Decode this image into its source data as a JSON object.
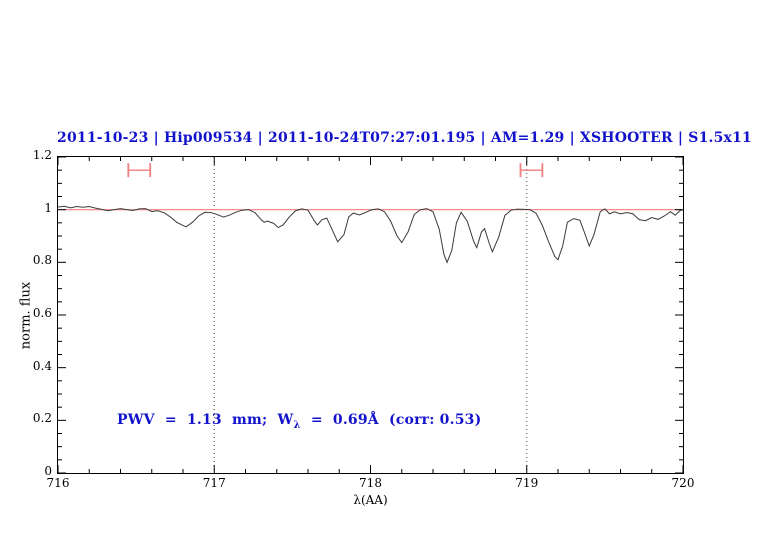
{
  "figure": {
    "title": "2011-10-23 | Hip009534 | 2011-10-24T07:27:01.195 | AM=1.29 | XSHOOTER | S1.5x11",
    "annotation_part1": "PWV  =  1.13  mm;  W",
    "annotation_sub": "λ",
    "annotation_part2": "  =  0.69Å  (corr: 0.53)"
  },
  "colors": {
    "title_blue": "#1212cc",
    "annotation_blue": "#1212cc",
    "reference_red": "#f08080",
    "marker_red": "#f08080",
    "spectrum": "#3a3a3a",
    "dotted_line": "#444444",
    "axis": "#000000"
  },
  "chart_data": {
    "type": "line",
    "title": "2011-10-23 | Hip009534 | 2011-10-24T07:27:01.195 | AM=1.29 | XSHOOTER | S1.5x11",
    "xlabel": "λ(AA)",
    "ylabel": "norm. flux",
    "xlim": [
      716,
      720
    ],
    "ylim": [
      0,
      1.2
    ],
    "grid": false,
    "x_major_ticks": [
      716,
      717,
      718,
      719,
      720
    ],
    "x_tick_labels": [
      "716",
      "717",
      "718",
      "719",
      "720"
    ],
    "x_minor_step": 0.2,
    "y_major_ticks": [
      0,
      0.2,
      0.4,
      0.6,
      0.8,
      1,
      1.2
    ],
    "y_tick_labels": [
      "0",
      "0.2",
      "0.4",
      "0.6",
      "0.8",
      "1",
      "1.2"
    ],
    "y_minor_step": 0.05,
    "reference_line_y": 1.0,
    "dotted_lines_x": [
      717,
      719
    ],
    "annotation": "PWV = 1.13 mm; Wλ = 0.69Å (corr: 0.53)",
    "error_markers": [
      {
        "x_min": 716.45,
        "x_max": 716.59,
        "y": 1.15
      },
      {
        "x_min": 718.96,
        "x_max": 719.1,
        "y": 1.15
      }
    ],
    "series": [
      {
        "name": "telluric-spectrum",
        "points": [
          [
            716.0,
            1.01
          ],
          [
            716.04,
            1.013
          ],
          [
            716.08,
            1.007
          ],
          [
            716.12,
            1.012
          ],
          [
            716.16,
            1.009
          ],
          [
            716.2,
            1.012
          ],
          [
            716.24,
            1.006
          ],
          [
            716.28,
            1.001
          ],
          [
            716.32,
            0.996
          ],
          [
            716.36,
            1.0
          ],
          [
            716.4,
            1.004
          ],
          [
            716.44,
            1.0
          ],
          [
            716.48,
            0.997
          ],
          [
            716.52,
            1.003
          ],
          [
            716.56,
            1.004
          ],
          [
            716.6,
            0.993
          ],
          [
            716.64,
            0.996
          ],
          [
            716.68,
            0.988
          ],
          [
            716.72,
            0.972
          ],
          [
            716.76,
            0.952
          ],
          [
            716.8,
            0.94
          ],
          [
            716.82,
            0.935
          ],
          [
            716.86,
            0.952
          ],
          [
            716.9,
            0.976
          ],
          [
            716.94,
            0.99
          ],
          [
            716.98,
            0.989
          ],
          [
            717.02,
            0.981
          ],
          [
            717.06,
            0.972
          ],
          [
            717.1,
            0.98
          ],
          [
            717.14,
            0.991
          ],
          [
            717.18,
            0.998
          ],
          [
            717.22,
            1.0
          ],
          [
            717.26,
            0.989
          ],
          [
            717.3,
            0.962
          ],
          [
            717.32,
            0.952
          ],
          [
            717.34,
            0.957
          ],
          [
            717.38,
            0.948
          ],
          [
            717.41,
            0.932
          ],
          [
            717.44,
            0.942
          ],
          [
            717.48,
            0.972
          ],
          [
            717.52,
            0.996
          ],
          [
            717.56,
            1.003
          ],
          [
            717.6,
            0.998
          ],
          [
            717.64,
            0.958
          ],
          [
            717.66,
            0.942
          ],
          [
            717.69,
            0.962
          ],
          [
            717.72,
            0.968
          ],
          [
            717.75,
            0.93
          ],
          [
            717.79,
            0.878
          ],
          [
            717.83,
            0.905
          ],
          [
            717.86,
            0.972
          ],
          [
            717.89,
            0.987
          ],
          [
            717.93,
            0.98
          ],
          [
            717.97,
            0.99
          ],
          [
            718.01,
            1.0
          ],
          [
            718.05,
            1.003
          ],
          [
            718.09,
            0.992
          ],
          [
            718.13,
            0.955
          ],
          [
            718.17,
            0.9
          ],
          [
            718.2,
            0.875
          ],
          [
            718.24,
            0.915
          ],
          [
            718.28,
            0.982
          ],
          [
            718.32,
            1.0
          ],
          [
            718.36,
            1.004
          ],
          [
            718.4,
            0.992
          ],
          [
            718.44,
            0.925
          ],
          [
            718.47,
            0.83
          ],
          [
            718.49,
            0.8
          ],
          [
            718.52,
            0.845
          ],
          [
            718.55,
            0.95
          ],
          [
            718.58,
            0.99
          ],
          [
            718.62,
            0.955
          ],
          [
            718.66,
            0.88
          ],
          [
            718.68,
            0.856
          ],
          [
            718.71,
            0.915
          ],
          [
            718.73,
            0.928
          ],
          [
            718.76,
            0.872
          ],
          [
            718.78,
            0.84
          ],
          [
            718.82,
            0.895
          ],
          [
            718.86,
            0.978
          ],
          [
            718.9,
            0.998
          ],
          [
            718.94,
            1.002
          ],
          [
            718.98,
            1.001
          ],
          [
            719.02,
            1.0
          ],
          [
            719.06,
            0.986
          ],
          [
            719.1,
            0.94
          ],
          [
            719.14,
            0.878
          ],
          [
            719.18,
            0.822
          ],
          [
            719.2,
            0.81
          ],
          [
            719.23,
            0.862
          ],
          [
            719.26,
            0.952
          ],
          [
            719.3,
            0.966
          ],
          [
            719.34,
            0.96
          ],
          [
            719.37,
            0.912
          ],
          [
            719.4,
            0.862
          ],
          [
            719.43,
            0.905
          ],
          [
            719.47,
            0.992
          ],
          [
            719.5,
            1.003
          ],
          [
            719.53,
            0.984
          ],
          [
            719.56,
            0.992
          ],
          [
            719.6,
            0.984
          ],
          [
            719.64,
            0.989
          ],
          [
            719.68,
            0.984
          ],
          [
            719.72,
            0.962
          ],
          [
            719.76,
            0.958
          ],
          [
            719.8,
            0.97
          ],
          [
            719.84,
            0.963
          ],
          [
            719.88,
            0.976
          ],
          [
            719.92,
            0.992
          ],
          [
            719.95,
            0.979
          ],
          [
            719.98,
            0.996
          ],
          [
            720.0,
            1.0
          ]
        ]
      }
    ]
  }
}
